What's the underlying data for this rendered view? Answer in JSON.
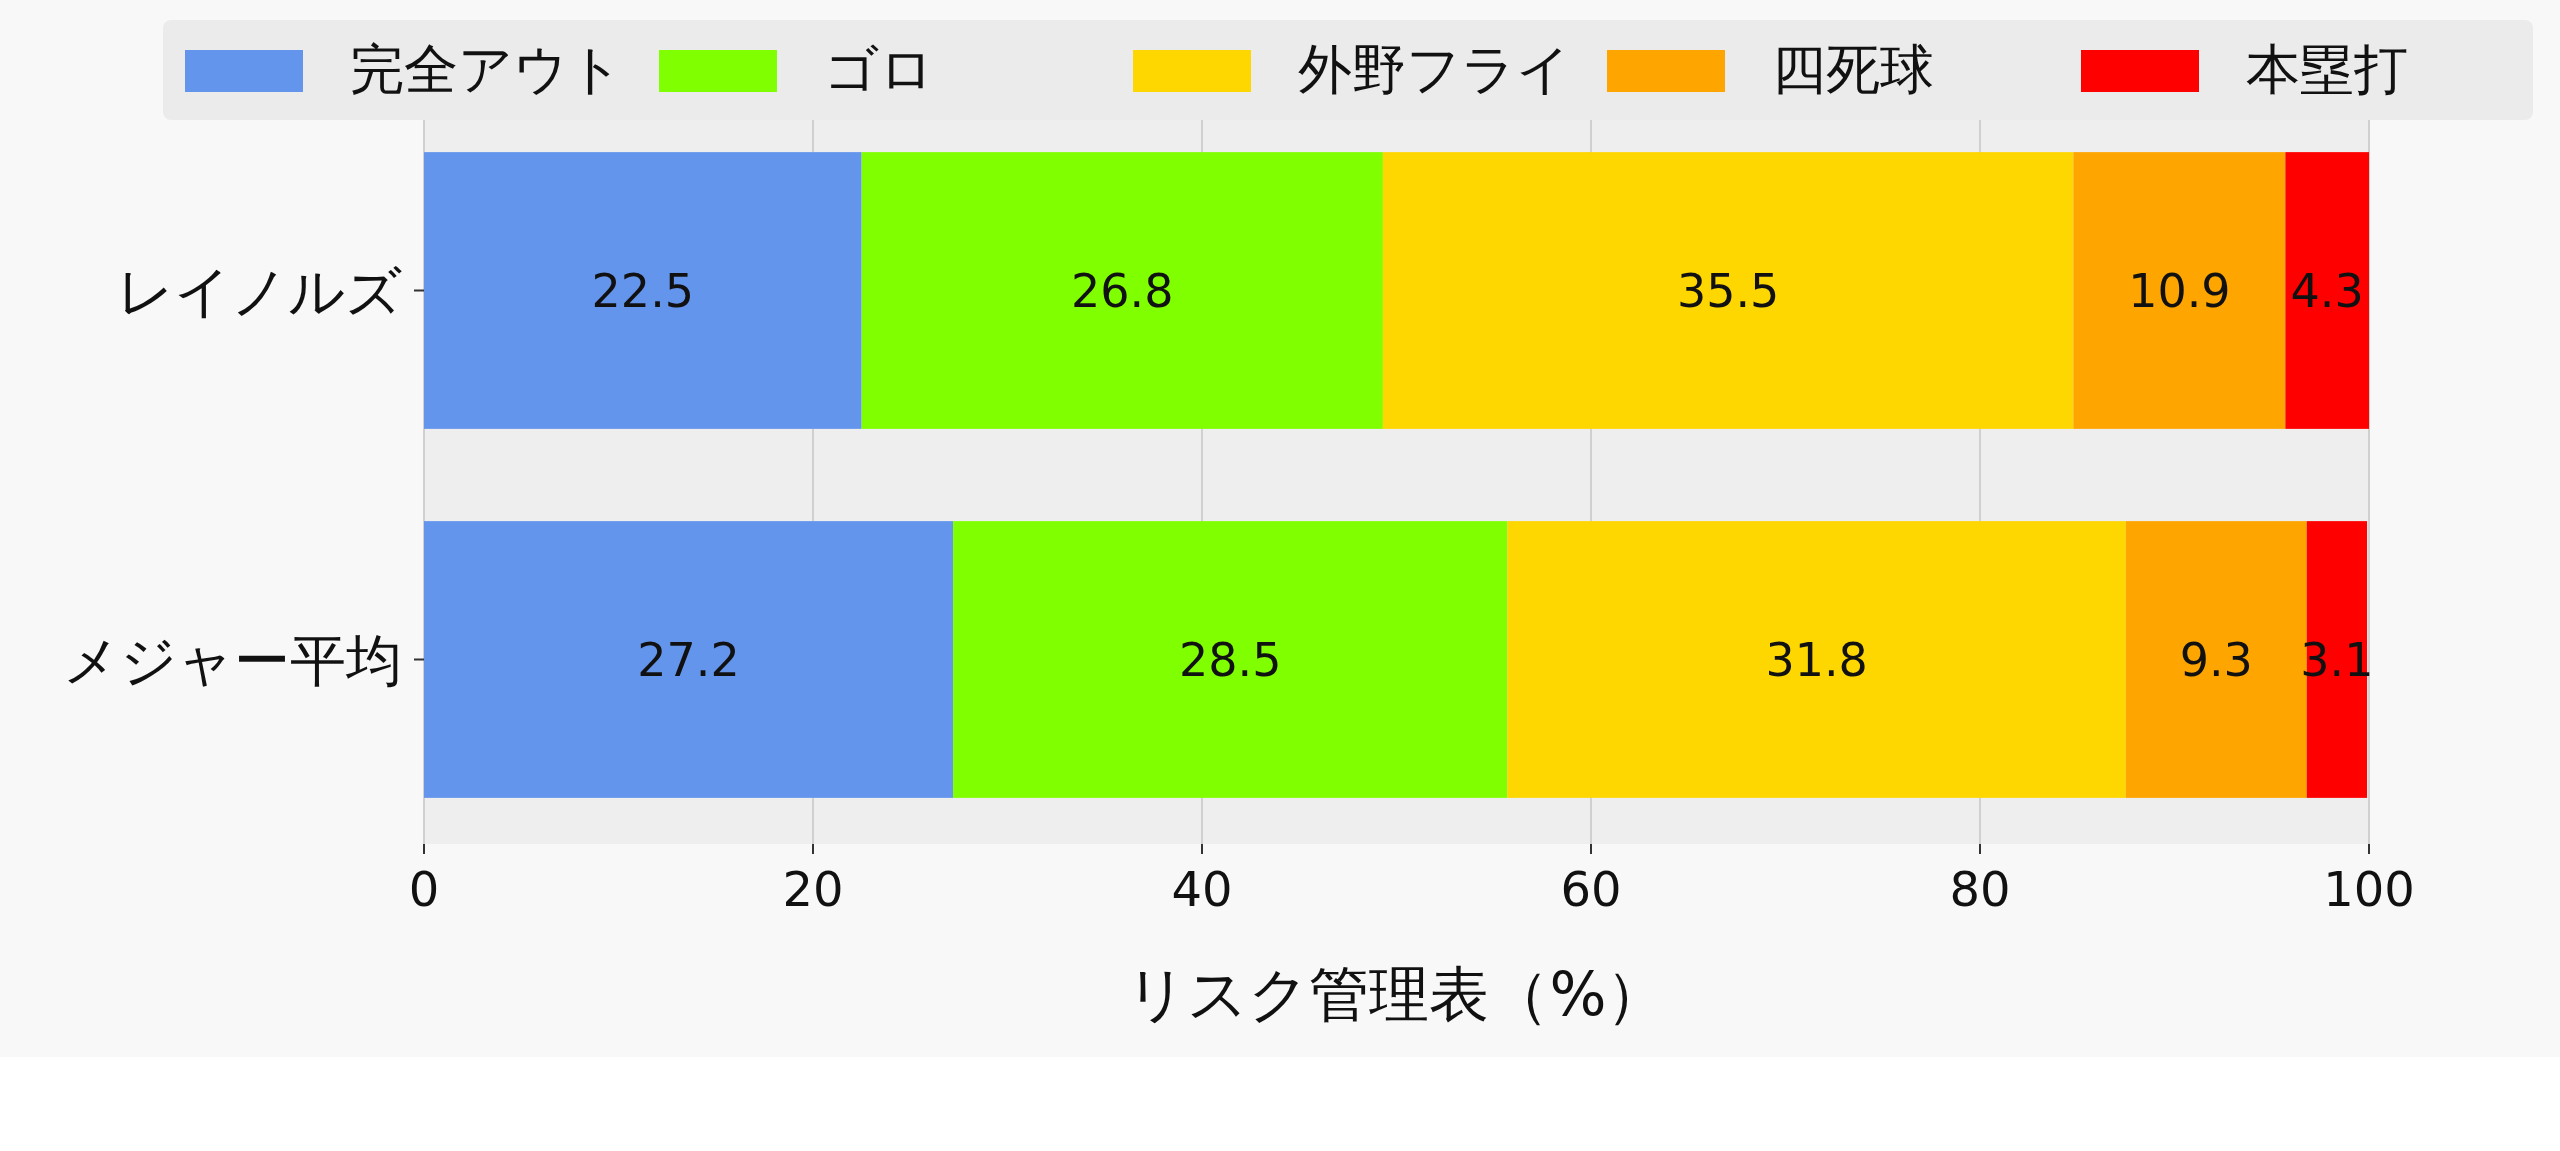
{
  "chart_data": {
    "type": "bar",
    "orientation": "horizontal",
    "stacked": true,
    "categories": [
      "レイノルズ",
      "メジャー平均"
    ],
    "series": [
      {
        "name": "完全アウト",
        "color": "#6495ed",
        "values": [
          22.5,
          27.2
        ]
      },
      {
        "name": "ゴロ",
        "color": "#7fff00",
        "values": [
          26.8,
          28.5
        ]
      },
      {
        "name": "外野フライ",
        "color": "#ffd700",
        "values": [
          35.5,
          31.8
        ]
      },
      {
        "name": "四死球",
        "color": "#ffa500",
        "values": [
          10.9,
          9.3
        ]
      },
      {
        "name": "本塁打",
        "color": "#ff0000",
        "values": [
          4.3,
          3.1
        ]
      }
    ],
    "xlim": [
      0,
      100
    ],
    "xticks": [
      0,
      20,
      40,
      60,
      80,
      100
    ],
    "xlabel": "リスク管理表（%）",
    "grid": "x",
    "legend": "top",
    "data_labels": true
  }
}
